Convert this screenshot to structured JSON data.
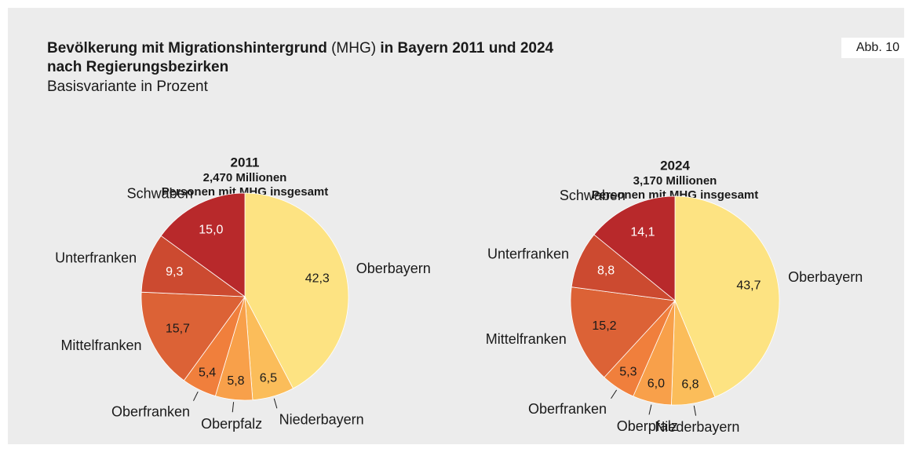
{
  "figure_label": "Abb. 10",
  "title": [
    "Bevölkerung mit Migrationshintergrund",
    "(MHG)",
    "in Bayern 2011 und 2024",
    "nach Regierungsbezirken"
  ],
  "subtitle": "Basisvariante in Prozent",
  "chart_data": [
    {
      "type": "pie",
      "title": "2011",
      "subtitle": [
        "2,470 Millionen",
        "Personen mit MHG insgesamt"
      ],
      "categories": [
        "Oberbayern",
        "Niederbayern",
        "Oberpfalz",
        "Oberfranken",
        "Mittelfranken",
        "Unterfranken",
        "Schwaben"
      ],
      "values": [
        42.3,
        6.5,
        5.8,
        5.4,
        15.7,
        9.3,
        15.0
      ],
      "value_labels": [
        "42,3",
        "6,5",
        "5,8",
        "5,4",
        "15,7",
        "9,3",
        "15,0"
      ],
      "colors": [
        "#fde382",
        "#fbbd5a",
        "#f8a04a",
        "#f07f3c",
        "#dc6236",
        "#cc4a30",
        "#b8292b"
      ]
    },
    {
      "type": "pie",
      "title": "2024",
      "subtitle": [
        "3,170 Millionen",
        "Personen mit MHG insgesamt"
      ],
      "categories": [
        "Oberbayern",
        "Niederbayern",
        "Oberpfalz",
        "Oberfranken",
        "Mittelfranken",
        "Unterfranken",
        "Schwaben"
      ],
      "values": [
        43.7,
        6.8,
        6.0,
        5.3,
        15.2,
        8.8,
        14.1
      ],
      "value_labels": [
        "43,7",
        "6,8",
        "6,0",
        "5,3",
        "15,2",
        "8,8",
        "14,1"
      ],
      "colors": [
        "#fde382",
        "#fbbd5a",
        "#f8a04a",
        "#f07f3c",
        "#dc6236",
        "#cc4a30",
        "#b8292b"
      ]
    }
  ]
}
